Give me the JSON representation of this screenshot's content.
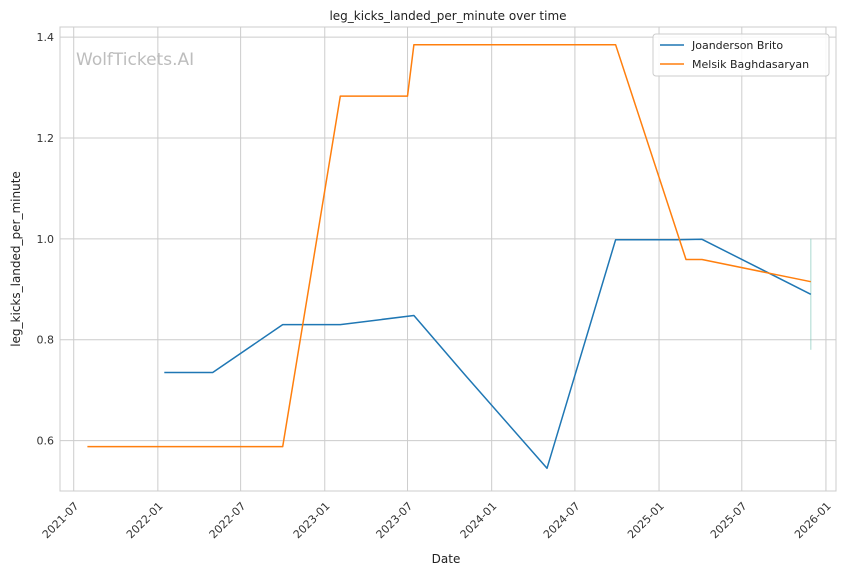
{
  "chart_data": {
    "type": "line",
    "title": "leg_kicks_landed_per_minute over time",
    "xlabel": "Date",
    "ylabel": "leg_kicks_landed_per_minute",
    "watermark": "WolfTickets.AI",
    "grid": true,
    "legend_position": "top-right",
    "xlim": [
      "2021-06-01",
      "2026-01-23"
    ],
    "ylim": [
      0.5,
      1.42
    ],
    "x_ticks": [
      "2021-07",
      "2022-01",
      "2022-07",
      "2023-01",
      "2023-07",
      "2024-01",
      "2024-07",
      "2025-01",
      "2025-07",
      "2026-01"
    ],
    "y_ticks": [
      "0.6",
      "0.8",
      "1.0",
      "1.2",
      "1.4"
    ],
    "series": [
      {
        "name": "Joanderson Brito",
        "color": "#1f77b4",
        "x": [
          "2022-01-15",
          "2022-05-01",
          "2022-10-01",
          "2023-02-04",
          "2023-07-15",
          "2023-11-04",
          "2024-05-01",
          "2024-09-28",
          "2025-02-08",
          "2025-04-05",
          "2025-11-29"
        ],
        "y": [
          0.735,
          0.735,
          0.83,
          0.83,
          0.848,
          0.73,
          0.545,
          0.998,
          0.998,
          0.999,
          0.89
        ]
      },
      {
        "name": "Melsik Baghdasaryan",
        "color": "#ff7f0e",
        "x": [
          "2021-07-31",
          "2022-10-01",
          "2023-02-04",
          "2023-07-01",
          "2023-07-15",
          "2024-09-28",
          "2025-03-01",
          "2025-04-05",
          "2025-11-29"
        ],
        "y": [
          0.588,
          0.588,
          1.283,
          1.283,
          1.385,
          1.385,
          0.959,
          0.959,
          0.915
        ]
      }
    ],
    "accent_segment": {
      "color": "#6fc2b0",
      "x": "2025-11-29",
      "y_range": [
        0.78,
        1.0
      ]
    }
  }
}
